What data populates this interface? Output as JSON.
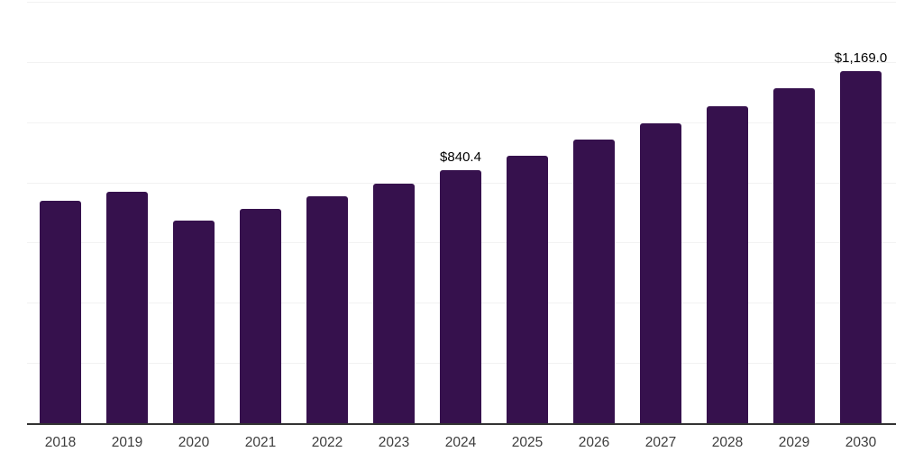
{
  "chart_data": {
    "type": "bar",
    "title": "",
    "xlabel": "",
    "ylabel": "",
    "categories": [
      "2018",
      "2019",
      "2020",
      "2021",
      "2022",
      "2023",
      "2024",
      "2025",
      "2026",
      "2027",
      "2028",
      "2029",
      "2030"
    ],
    "values": [
      738,
      768,
      672,
      711,
      753,
      795,
      840.4,
      890,
      941,
      995,
      1052,
      1112,
      1169
    ],
    "data_labels": [
      "",
      "",
      "",
      "",
      "",
      "",
      "$840.4",
      "",
      "",
      "",
      "",
      "",
      "$1,169.0"
    ],
    "ylim": [
      0,
      1400
    ],
    "gridline_step": 200,
    "grid": "horizontal",
    "y_tick_labels_visible": false,
    "legend_position": "none",
    "colors": {
      "bar": "#36114D",
      "axis_line": "#333333",
      "gridline": "#f2f2f2",
      "tick_label": "#3d3d3d",
      "data_label": "#000000",
      "background": "#ffffff"
    }
  }
}
